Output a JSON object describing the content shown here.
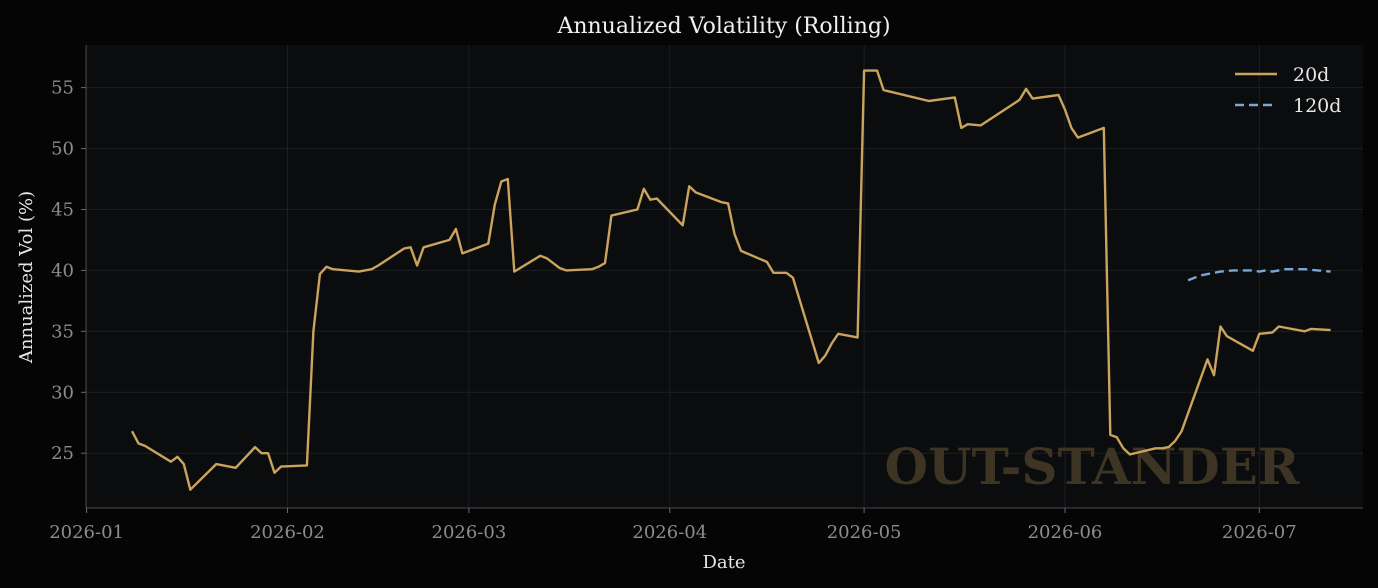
{
  "chart_data": {
    "type": "line",
    "title": "Annualized Volatility (Rolling)",
    "xlabel": "Date",
    "ylabel": "Annualized Vol (%)",
    "xlim": [
      "2026-01-01",
      "2026-07-04"
    ],
    "ylim": [
      20.5,
      58.5
    ],
    "x_ticks": [
      "2026-01",
      "2026-02",
      "2026-03",
      "2026-04",
      "2026-05",
      "2026-06",
      "2026-07"
    ],
    "y_ticks": [
      25,
      30,
      35,
      40,
      45,
      50,
      55
    ],
    "grid": true,
    "legend_position": "top-right",
    "watermark": "OUT-STANDER",
    "series": [
      {
        "name": "20d",
        "color": "#caa35c",
        "dash": "solid",
        "points": [
          [
            "2026-01-08",
            26.8
          ],
          [
            "2026-01-09",
            25.8
          ],
          [
            "2026-01-10",
            25.6
          ],
          [
            "2026-01-14",
            24.3
          ],
          [
            "2026-01-15",
            24.7
          ],
          [
            "2026-01-16",
            24.1
          ],
          [
            "2026-01-17",
            22.0
          ],
          [
            "2026-01-21",
            24.1
          ],
          [
            "2026-01-24",
            23.8
          ],
          [
            "2026-01-27",
            25.5
          ],
          [
            "2026-01-28",
            25.0
          ],
          [
            "2026-01-29",
            25.0
          ],
          [
            "2026-01-30",
            23.4
          ],
          [
            "2026-01-31",
            23.9
          ],
          [
            "2026-02-04",
            24.0
          ],
          [
            "2026-02-05",
            35.0
          ],
          [
            "2026-02-06",
            39.7
          ],
          [
            "2026-02-07",
            40.3
          ],
          [
            "2026-02-08",
            40.1
          ],
          [
            "2026-02-12",
            39.9
          ],
          [
            "2026-02-14",
            40.1
          ],
          [
            "2026-02-15",
            40.4
          ],
          [
            "2026-02-19",
            41.8
          ],
          [
            "2026-02-20",
            41.9
          ],
          [
            "2026-02-21",
            40.4
          ],
          [
            "2026-02-22",
            41.9
          ],
          [
            "2026-02-26",
            42.5
          ],
          [
            "2026-02-27",
            43.4
          ],
          [
            "2026-02-28",
            41.4
          ],
          [
            "2026-03-04",
            42.2
          ],
          [
            "2026-03-05",
            45.4
          ],
          [
            "2026-03-06",
            47.3
          ],
          [
            "2026-03-07",
            47.5
          ],
          [
            "2026-03-08",
            39.9
          ],
          [
            "2026-03-12",
            41.2
          ],
          [
            "2026-03-13",
            41.0
          ],
          [
            "2026-03-14",
            40.6
          ],
          [
            "2026-03-15",
            40.2
          ],
          [
            "2026-03-16",
            40.0
          ],
          [
            "2026-03-20",
            40.1
          ],
          [
            "2026-03-21",
            40.3
          ],
          [
            "2026-03-22",
            40.6
          ],
          [
            "2026-03-23",
            44.5
          ],
          [
            "2026-03-27",
            45.0
          ],
          [
            "2026-03-28",
            46.7
          ],
          [
            "2026-03-29",
            45.8
          ],
          [
            "2026-03-30",
            45.9
          ],
          [
            "2026-04-03",
            43.7
          ],
          [
            "2026-04-04",
            46.9
          ],
          [
            "2026-04-05",
            46.4
          ],
          [
            "2026-04-09",
            45.6
          ],
          [
            "2026-04-10",
            45.5
          ],
          [
            "2026-04-11",
            43.0
          ],
          [
            "2026-04-12",
            41.6
          ],
          [
            "2026-04-16",
            40.7
          ],
          [
            "2026-04-17",
            39.8
          ],
          [
            "2026-04-19",
            39.8
          ],
          [
            "2026-04-20",
            39.4
          ],
          [
            "2026-04-24",
            32.4
          ],
          [
            "2026-04-25",
            33.0
          ],
          [
            "2026-04-26",
            34.0
          ],
          [
            "2026-04-27",
            34.8
          ],
          [
            "2026-04-30",
            34.5
          ],
          [
            "2026-05-01",
            56.4
          ],
          [
            "2026-05-03",
            56.4
          ],
          [
            "2026-05-04",
            54.8
          ],
          [
            "2026-05-11",
            53.9
          ],
          [
            "2026-05-15",
            54.2
          ],
          [
            "2026-05-16",
            51.7
          ],
          [
            "2026-05-17",
            52.0
          ],
          [
            "2026-05-19",
            51.9
          ],
          [
            "2026-05-25",
            54.0
          ],
          [
            "2026-05-26",
            54.9
          ],
          [
            "2026-05-27",
            54.1
          ],
          [
            "2026-05-31",
            54.4
          ],
          [
            "2026-06-01",
            53.2
          ],
          [
            "2026-06-02",
            51.7
          ],
          [
            "2026-06-03",
            50.9
          ],
          [
            "2026-06-07",
            51.7
          ],
          [
            "2026-06-08",
            26.5
          ],
          [
            "2026-06-09",
            26.3
          ],
          [
            "2026-06-10",
            25.4
          ],
          [
            "2026-06-11",
            24.9
          ],
          [
            "2026-06-15",
            25.4
          ],
          [
            "2026-06-16",
            25.4
          ],
          [
            "2026-06-17",
            25.5
          ],
          [
            "2026-06-18",
            26.0
          ],
          [
            "2026-06-19",
            26.8
          ],
          [
            "2026-06-23",
            32.7
          ],
          [
            "2026-06-24",
            31.4
          ],
          [
            "2026-06-25",
            35.4
          ],
          [
            "2026-06-26",
            34.6
          ],
          [
            "2026-06-30",
            33.4
          ],
          [
            "2026-07-01",
            34.8
          ],
          [
            "2026-07-03",
            34.9
          ],
          [
            "2026-07-04",
            35.4
          ],
          [
            "2026-07-08",
            35.0
          ],
          [
            "2026-07-09",
            35.2
          ],
          [
            "2026-07-12",
            35.1
          ]
        ]
      },
      {
        "name": "120d",
        "color": "#7aa7d8",
        "dash": "dashed",
        "points": [
          [
            "2026-06-20",
            39.2
          ],
          [
            "2026-06-21",
            39.4
          ],
          [
            "2026-06-22",
            39.6
          ],
          [
            "2026-06-23",
            39.7
          ],
          [
            "2026-06-24",
            39.8
          ],
          [
            "2026-06-25",
            39.9
          ],
          [
            "2026-06-27",
            40.0
          ],
          [
            "2026-06-30",
            40.0
          ],
          [
            "2026-07-01",
            39.9
          ],
          [
            "2026-07-02",
            40.0
          ],
          [
            "2026-07-03",
            39.9
          ],
          [
            "2026-07-05",
            40.1
          ],
          [
            "2026-07-08",
            40.1
          ],
          [
            "2026-07-10",
            40.0
          ],
          [
            "2026-07-12",
            39.9
          ]
        ]
      }
    ]
  }
}
